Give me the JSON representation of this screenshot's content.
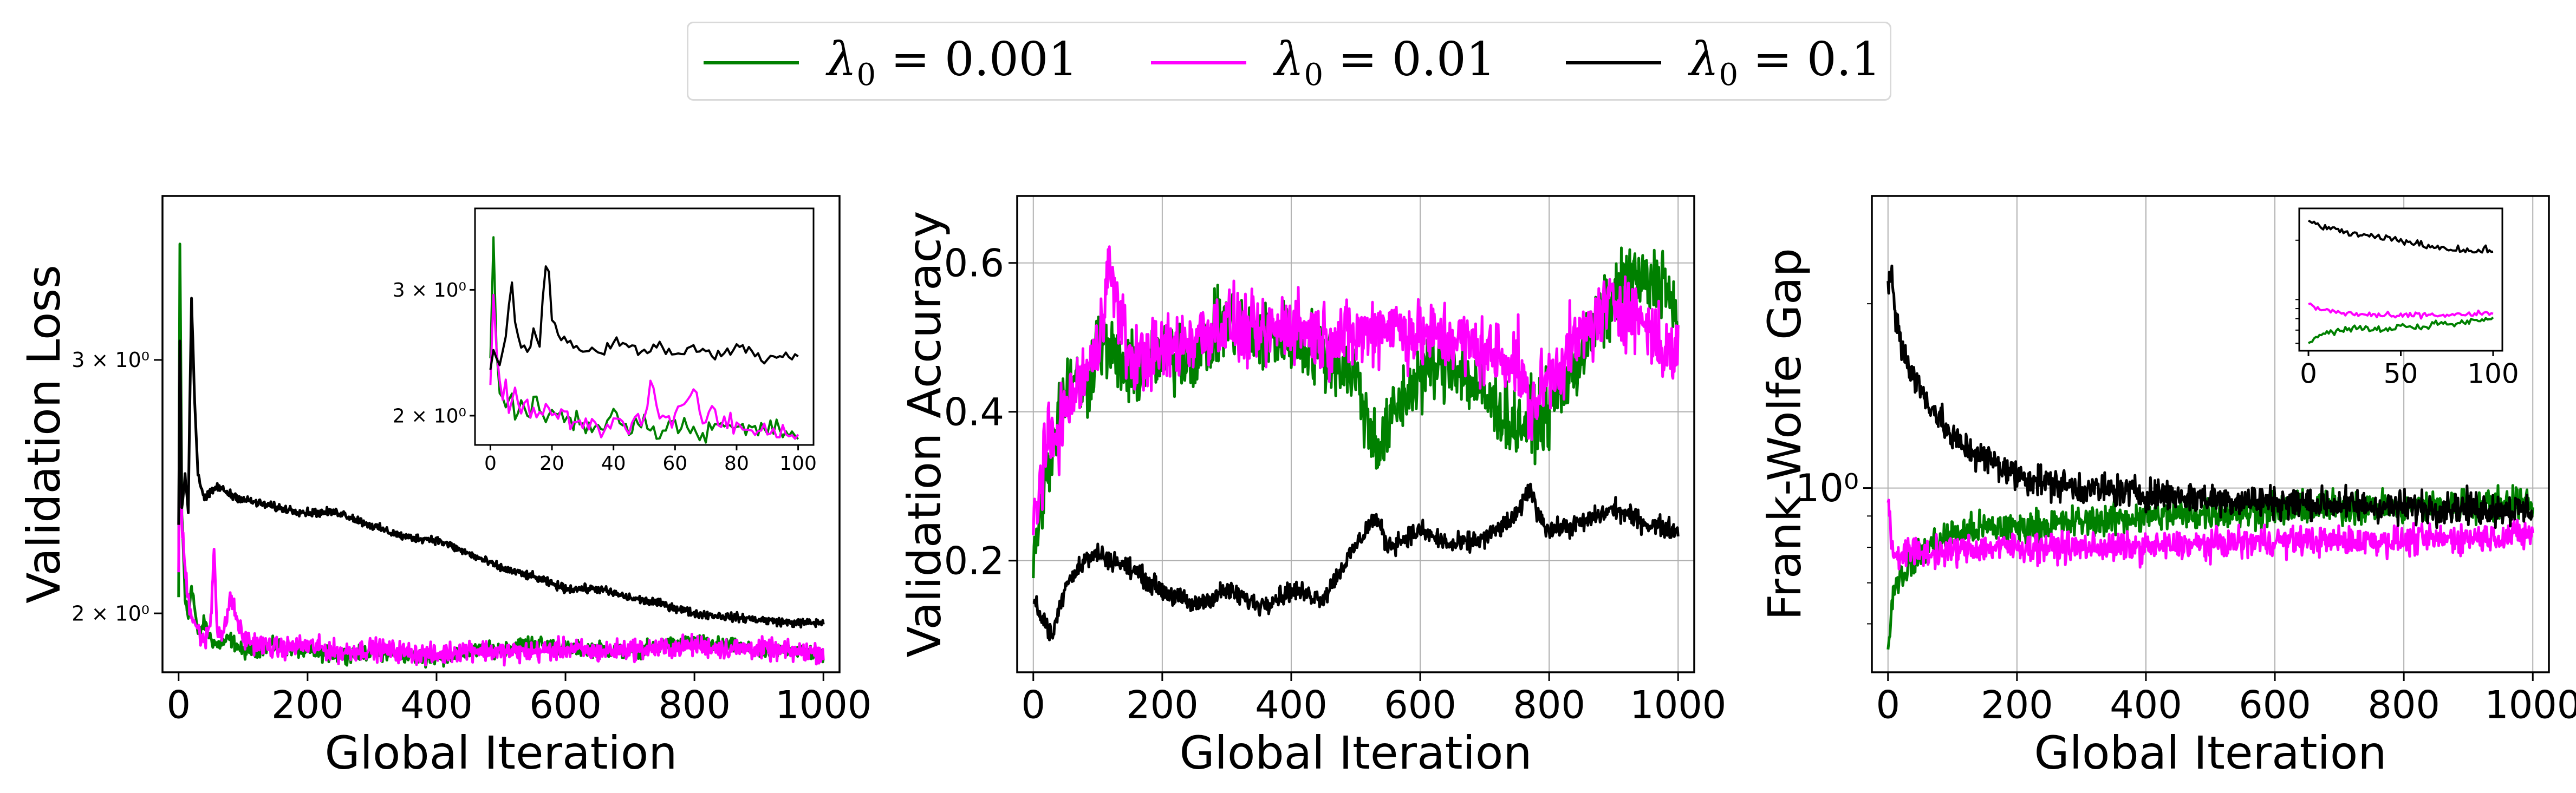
{
  "legend": {
    "placement": "top-center",
    "entries": [
      {
        "symbol": "λ",
        "sub": "0",
        "value": " = 0.001",
        "color": "#008000"
      },
      {
        "symbol": "λ",
        "sub": "0",
        "value": " = 0.01",
        "color": "#ff00ff"
      },
      {
        "symbol": "λ",
        "sub": "0",
        "value": " = 0.1",
        "color": "#000000"
      }
    ]
  },
  "chart_data": [
    {
      "type": "line",
      "xlabel": "Global Iteration",
      "ylabel": "Validation Loss",
      "yscale": "log",
      "xlim": [
        -25,
        1025
      ],
      "ylim": [
        1.82,
        3.9
      ],
      "xticks": [
        0,
        200,
        400,
        600,
        800,
        1000
      ],
      "yticks": [
        {
          "value": 2,
          "label": "2 × 10⁰"
        },
        {
          "value": 3,
          "label": "3 × 10⁰"
        }
      ],
      "grid": false,
      "series": [
        {
          "color": "#008000",
          "x": [
            0,
            2,
            5,
            10,
            15,
            20,
            30,
            40,
            50,
            60,
            80,
            100,
            150,
            200,
            250,
            300,
            400,
            450,
            500,
            550,
            600,
            650,
            700,
            750,
            800,
            850,
            900,
            950,
            1000
          ],
          "y": [
            2.05,
            3.6,
            2.35,
            2.05,
            1.98,
            2.1,
            1.93,
            1.97,
            1.92,
            1.9,
            1.92,
            1.88,
            1.9,
            1.88,
            1.87,
            1.88,
            1.86,
            1.88,
            1.89,
            1.91,
            1.89,
            1.89,
            1.88,
            1.9,
            1.91,
            1.9,
            1.88,
            1.89,
            1.87
          ]
        },
        {
          "color": "#ff00ff",
          "x": [
            0,
            2,
            5,
            10,
            15,
            20,
            30,
            40,
            50,
            55,
            60,
            70,
            80,
            100,
            150,
            200,
            250,
            300,
            400,
            450,
            500,
            550,
            600,
            650,
            700,
            750,
            800,
            850,
            900,
            950,
            1000
          ],
          "y": [
            2.1,
            3.1,
            2.3,
            2.15,
            2.05,
            2.0,
            1.95,
            1.9,
            1.98,
            2.22,
            1.95,
            1.93,
            2.05,
            1.92,
            1.89,
            1.9,
            1.88,
            1.89,
            1.87,
            1.89,
            1.88,
            1.88,
            1.89,
            1.88,
            1.89,
            1.89,
            1.9,
            1.89,
            1.89,
            1.88,
            1.88
          ]
        },
        {
          "color": "#000000",
          "x": [
            0,
            2,
            5,
            10,
            15,
            20,
            25,
            30,
            35,
            40,
            60,
            80,
            100,
            150,
            200,
            250,
            300,
            350,
            400,
            450,
            500,
            550,
            600,
            650,
            700,
            750,
            800,
            850,
            900,
            950,
            1000
          ],
          "y": [
            2.3,
            3.1,
            2.35,
            2.5,
            2.35,
            3.3,
            2.8,
            2.5,
            2.45,
            2.4,
            2.45,
            2.42,
            2.4,
            2.37,
            2.35,
            2.35,
            2.3,
            2.26,
            2.25,
            2.2,
            2.15,
            2.12,
            2.08,
            2.08,
            2.05,
            2.03,
            2.0,
            1.99,
            1.98,
            1.97,
            1.97
          ]
        }
      ],
      "inset": {
        "xlim": [
          -5,
          105
        ],
        "ylim": [
          1.82,
          3.9
        ],
        "xticks": [
          0,
          20,
          40,
          60,
          80,
          100
        ],
        "yticks": [
          {
            "value": 2,
            "label": "2 × 10⁰"
          },
          {
            "value": 3,
            "label": "3 × 10⁰"
          }
        ],
        "series": [
          {
            "color": "#008000",
            "x": [
              0,
              1,
              2,
              3,
              4,
              5,
              6,
              8,
              10,
              12,
              15,
              18,
              20,
              25,
              30,
              35,
              40,
              45,
              50,
              55,
              60,
              65,
              70,
              75,
              80,
              85,
              90,
              95,
              100
            ],
            "y": [
              2.4,
              3.6,
              2.5,
              2.2,
              2.1,
              2.05,
              2.15,
              2.0,
              2.05,
              1.98,
              2.1,
              1.97,
              2.05,
              1.95,
              1.98,
              1.92,
              2.0,
              1.93,
              1.95,
              1.9,
              1.97,
              1.92,
              1.9,
              1.93,
              1.92,
              1.9,
              1.92,
              1.9,
              1.88
            ]
          },
          {
            "color": "#ff00ff",
            "x": [
              0,
              1,
              2,
              3,
              4,
              5,
              6,
              8,
              10,
              12,
              15,
              18,
              20,
              25,
              30,
              35,
              40,
              45,
              50,
              52,
              55,
              60,
              65,
              70,
              72,
              75,
              80,
              85,
              90,
              95,
              100
            ],
            "y": [
              2.2,
              3.0,
              2.4,
              2.2,
              2.1,
              2.3,
              2.05,
              2.15,
              2.0,
              2.05,
              1.98,
              2.1,
              2.02,
              1.98,
              1.95,
              1.92,
              1.97,
              1.95,
              1.98,
              2.25,
              2.0,
              1.97,
              2.15,
              1.95,
              2.07,
              1.93,
              1.95,
              1.9,
              1.92,
              1.9,
              1.89
            ]
          },
          {
            "color": "#000000",
            "x": [
              0,
              1,
              2,
              3,
              5,
              7,
              8,
              10,
              12,
              14,
              16,
              18,
              19,
              20,
              22,
              25,
              30,
              35,
              40,
              45,
              50,
              55,
              60,
              65,
              70,
              75,
              80,
              85,
              90,
              95,
              100
            ],
            "y": [
              2.3,
              2.5,
              2.4,
              2.35,
              2.6,
              3.1,
              2.7,
              2.5,
              2.45,
              2.6,
              2.5,
              3.25,
              3.15,
              2.75,
              2.6,
              2.55,
              2.45,
              2.45,
              2.55,
              2.48,
              2.45,
              2.52,
              2.42,
              2.48,
              2.45,
              2.42,
              2.5,
              2.45,
              2.4,
              2.45,
              2.42
            ]
          }
        ]
      }
    },
    {
      "type": "line",
      "xlabel": "Global Iteration",
      "ylabel": "Validation Accuracy",
      "xlim": [
        -25,
        1025
      ],
      "ylim": [
        0.05,
        0.69
      ],
      "xticks": [
        0,
        200,
        400,
        600,
        800,
        1000
      ],
      "yticks": [
        {
          "value": 0.2,
          "label": "0.2"
        },
        {
          "value": 0.4,
          "label": "0.4"
        },
        {
          "value": 0.6,
          "label": "0.6"
        }
      ],
      "grid": true,
      "series": [
        {
          "color": "#008000",
          "x": [
            0,
            20,
            40,
            60,
            80,
            100,
            150,
            200,
            250,
            300,
            350,
            400,
            450,
            500,
            520,
            540,
            560,
            600,
            650,
            700,
            750,
            800,
            850,
            900,
            920,
            950,
            980,
            1000
          ],
          "y": [
            0.2,
            0.32,
            0.4,
            0.45,
            0.42,
            0.5,
            0.45,
            0.47,
            0.48,
            0.52,
            0.5,
            0.5,
            0.48,
            0.45,
            0.38,
            0.35,
            0.4,
            0.45,
            0.47,
            0.42,
            0.38,
            0.4,
            0.48,
            0.55,
            0.58,
            0.57,
            0.58,
            0.5
          ]
        },
        {
          "color": "#ff00ff",
          "x": [
            0,
            20,
            40,
            60,
            80,
            100,
            115,
            150,
            200,
            250,
            300,
            350,
            400,
            450,
            500,
            550,
            600,
            650,
            700,
            750,
            770,
            800,
            850,
            900,
            950,
            980,
            1000
          ],
          "y": [
            0.25,
            0.35,
            0.38,
            0.42,
            0.45,
            0.48,
            0.6,
            0.47,
            0.48,
            0.5,
            0.52,
            0.5,
            0.52,
            0.5,
            0.5,
            0.52,
            0.5,
            0.5,
            0.48,
            0.47,
            0.4,
            0.45,
            0.5,
            0.55,
            0.52,
            0.48,
            0.48
          ]
        },
        {
          "color": "#000000",
          "x": [
            0,
            15,
            30,
            50,
            80,
            100,
            150,
            200,
            250,
            300,
            350,
            400,
            450,
            500,
            530,
            550,
            600,
            650,
            700,
            750,
            770,
            780,
            800,
            850,
            900,
            950,
            1000
          ],
          "y": [
            0.15,
            0.12,
            0.1,
            0.17,
            0.2,
            0.21,
            0.19,
            0.16,
            0.14,
            0.16,
            0.14,
            0.16,
            0.15,
            0.22,
            0.26,
            0.22,
            0.24,
            0.22,
            0.23,
            0.26,
            0.3,
            0.27,
            0.24,
            0.25,
            0.27,
            0.25,
            0.24
          ]
        }
      ]
    },
    {
      "type": "line",
      "xlabel": "Global Iteration",
      "ylabel": "Frank-Wolfe Gap",
      "yscale": "log",
      "xlim": [
        -25,
        1025
      ],
      "ylim": [
        0.5,
        3.0
      ],
      "xticks": [
        0,
        200,
        400,
        600,
        800,
        1000
      ],
      "yticks": [
        {
          "value": 1,
          "label": "10⁰"
        }
      ],
      "grid": true,
      "series": [
        {
          "color": "#008000",
          "x": [
            0,
            5,
            10,
            20,
            40,
            60,
            100,
            150,
            200,
            300,
            400,
            500,
            600,
            700,
            800,
            900,
            1000
          ],
          "y": [
            0.55,
            0.62,
            0.7,
            0.72,
            0.76,
            0.8,
            0.84,
            0.86,
            0.86,
            0.88,
            0.9,
            0.91,
            0.92,
            0.93,
            0.93,
            0.94,
            0.95
          ]
        },
        {
          "color": "#ff00ff",
          "x": [
            0,
            5,
            10,
            20,
            40,
            60,
            100,
            150,
            200,
            300,
            400,
            500,
            600,
            700,
            800,
            900,
            1000
          ],
          "y": [
            0.95,
            0.82,
            0.78,
            0.78,
            0.79,
            0.78,
            0.79,
            0.8,
            0.8,
            0.8,
            0.8,
            0.81,
            0.82,
            0.82,
            0.82,
            0.83,
            0.84
          ]
        },
        {
          "color": "#000000",
          "x": [
            0,
            5,
            10,
            20,
            30,
            50,
            80,
            100,
            150,
            200,
            250,
            300,
            400,
            500,
            600,
            700,
            800,
            900,
            1000
          ],
          "y": [
            2.1,
            2.3,
            1.95,
            1.75,
            1.6,
            1.45,
            1.3,
            1.2,
            1.12,
            1.05,
            1.02,
            1.0,
            0.98,
            0.96,
            0.95,
            0.94,
            0.93,
            0.93,
            0.92
          ]
        }
      ],
      "inset": {
        "xlim": [
          -5,
          105
        ],
        "ylim": [
          0.55,
          2.9
        ],
        "xticks": [
          0,
          50,
          100
        ],
        "yscale": "log",
        "series": [
          {
            "color": "#008000",
            "x": [
              0,
              5,
              10,
              20,
              30,
              40,
              50,
              60,
              70,
              80,
              90,
              100
            ],
            "y": [
              0.6,
              0.65,
              0.68,
              0.7,
              0.72,
              0.7,
              0.74,
              0.72,
              0.76,
              0.75,
              0.78,
              0.8
            ]
          },
          {
            "color": "#ff00ff",
            "x": [
              0,
              5,
              10,
              20,
              30,
              40,
              50,
              60,
              70,
              80,
              90,
              100
            ],
            "y": [
              0.95,
              0.9,
              0.88,
              0.85,
              0.84,
              0.83,
              0.82,
              0.84,
              0.83,
              0.84,
              0.84,
              0.85
            ]
          },
          {
            "color": "#000000",
            "x": [
              0,
              5,
              10,
              20,
              30,
              40,
              50,
              60,
              70,
              80,
              90,
              100
            ],
            "y": [
              2.5,
              2.4,
              2.3,
              2.2,
              2.1,
              2.05,
              2.0,
              1.9,
              1.85,
              1.8,
              1.75,
              1.8
            ]
          }
        ]
      }
    }
  ]
}
